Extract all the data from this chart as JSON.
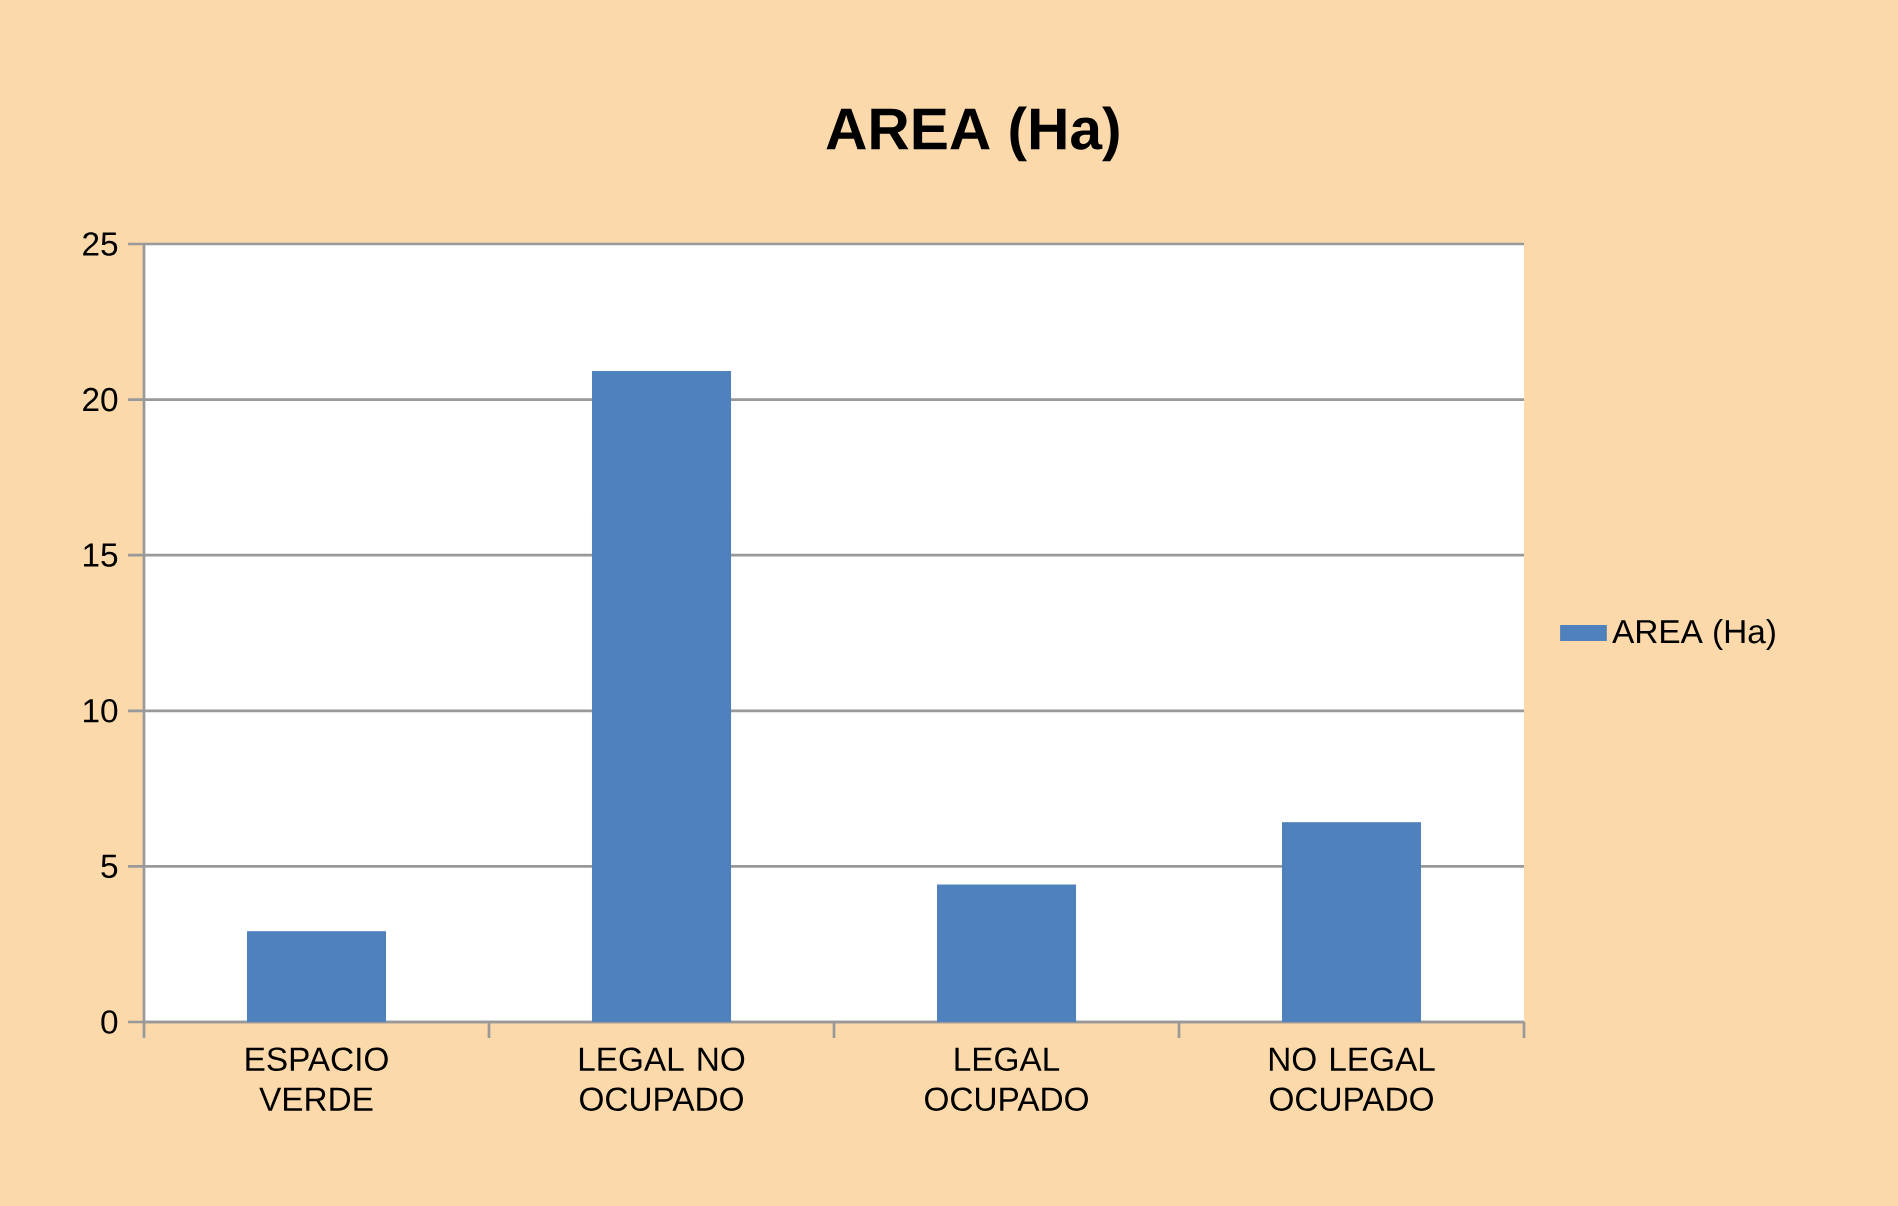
{
  "chart_data": {
    "type": "bar",
    "title": "AREA (Ha)",
    "categories": [
      "ESPACIO VERDE",
      "LEGAL NO OCUPADO",
      "LEGAL OCUPADO",
      "NO LEGAL OCUPADO"
    ],
    "series": [
      {
        "name": "AREA (Ha)",
        "color": "#4f81bd",
        "values": [
          2.9,
          20.9,
          4.4,
          6.4
        ]
      }
    ],
    "ylim": [
      0,
      25
    ],
    "yticks": [
      0,
      5,
      10,
      15,
      20,
      25
    ],
    "grid": "y",
    "legend": "right"
  }
}
